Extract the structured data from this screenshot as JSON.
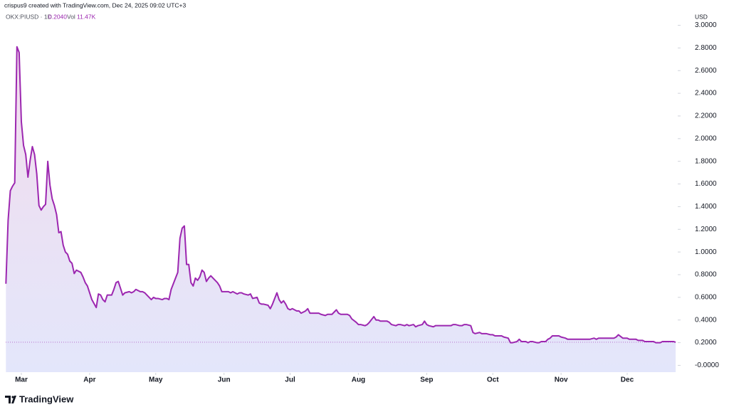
{
  "header": "crispus9 created with TradingView.com, Dec 24, 2025 09:02 UTC+3",
  "brand": "TradingView",
  "chart_data": {
    "type": "area",
    "legend": {
      "symbol": "OKX:PIUSD · 1D",
      "last": "0.2040",
      "volume_label": "Vol",
      "volume": "11.47K"
    },
    "y_unit": "USD",
    "xlim": [
      52.9,
      357.3
    ],
    "ylim": [
      -0.06,
      3.11
    ],
    "xticks": [
      {
        "value": 60,
        "label": "Mar"
      },
      {
        "value": 91,
        "label": "Apr"
      },
      {
        "value": 121,
        "label": "May"
      },
      {
        "value": 152,
        "label": "Jun"
      },
      {
        "value": 182,
        "label": "Jul"
      },
      {
        "value": 213,
        "label": "Aug"
      },
      {
        "value": 244,
        "label": "Sep"
      },
      {
        "value": 274,
        "label": "Oct"
      },
      {
        "value": 305,
        "label": "Nov"
      },
      {
        "value": 335,
        "label": "Dec"
      }
    ],
    "yticks": [
      {
        "value": 0,
        "label": "-0.0000"
      },
      {
        "value": 0.2,
        "label": "0.2000"
      },
      {
        "value": 0.4,
        "label": "0.4000"
      },
      {
        "value": 0.6,
        "label": "0.6000"
      },
      {
        "value": 0.8,
        "label": "0.8000"
      },
      {
        "value": 1,
        "label": "1.0000"
      },
      {
        "value": 1.2,
        "label": "1.2000"
      },
      {
        "value": 1.4,
        "label": "1.4000"
      },
      {
        "value": 1.6,
        "label": "1.6000"
      },
      {
        "value": 1.8,
        "label": "1.8000"
      },
      {
        "value": 2,
        "label": "2.0000"
      },
      {
        "value": 2.2,
        "label": "2.2000"
      },
      {
        "value": 2.4,
        "label": "2.4000"
      },
      {
        "value": 2.6,
        "label": "2.6000"
      },
      {
        "value": 2.8,
        "label": "2.8000"
      },
      {
        "value": 3,
        "label": "3.0000"
      }
    ],
    "grid": false,
    "series": [
      {
        "color": "#9c27b0",
        "x": [
          53,
          54,
          55,
          56,
          57,
          58,
          59,
          60,
          61,
          62,
          63,
          64,
          65,
          66,
          67,
          68,
          69,
          70,
          71,
          72,
          73,
          74,
          75,
          76,
          77,
          78,
          79,
          80,
          81,
          82,
          83,
          84,
          85,
          87,
          88,
          89,
          90,
          91,
          92,
          94,
          95,
          96,
          97,
          98,
          99,
          101,
          102,
          103,
          104,
          105,
          106,
          107,
          109,
          110,
          111,
          112,
          114,
          115,
          116,
          117,
          119,
          120,
          121,
          122,
          124,
          125,
          126,
          127,
          128,
          130,
          131,
          132,
          133,
          134,
          135,
          136,
          137,
          138,
          139,
          140,
          141,
          142,
          143,
          144,
          145,
          146,
          147,
          149,
          150,
          151,
          152,
          154,
          155,
          156,
          158,
          159,
          160,
          161,
          163,
          164,
          165,
          167,
          168,
          169,
          170,
          172,
          173,
          174,
          176,
          177,
          178,
          179,
          180,
          181,
          182,
          183,
          185,
          186,
          187,
          189,
          190,
          191,
          192,
          194,
          195,
          196,
          198,
          199,
          200,
          201,
          203,
          204,
          205,
          207,
          208,
          209,
          210,
          212,
          213,
          214,
          216,
          217,
          218,
          220,
          221,
          222,
          223,
          225,
          226,
          227,
          228,
          230,
          231,
          232,
          234,
          235,
          236,
          238,
          239,
          240,
          242,
          243,
          244,
          245,
          247,
          248,
          249,
          251,
          252,
          253,
          255,
          256,
          257,
          259,
          260,
          261,
          262,
          264,
          265,
          266,
          268,
          269,
          270,
          271,
          273,
          274,
          275,
          277,
          278,
          279,
          281,
          282,
          283,
          285,
          286,
          287,
          289,
          290,
          291,
          292,
          294,
          295,
          296,
          298,
          299,
          300,
          301,
          303,
          304,
          305,
          307,
          308,
          309,
          311,
          312,
          313,
          314,
          316,
          317,
          318,
          320,
          321,
          322,
          324,
          325,
          326,
          327,
          329,
          330,
          331,
          333,
          334,
          335,
          336,
          338,
          339,
          340,
          342,
          343,
          344,
          346,
          347,
          348,
          350,
          351,
          352,
          353,
          355,
          356,
          357
        ],
        "values": [
          0.72,
          1.28,
          1.54,
          1.58,
          1.61,
          2.81,
          2.76,
          2.15,
          1.94,
          1.86,
          1.66,
          1.81,
          1.93,
          1.86,
          1.69,
          1.41,
          1.37,
          1.4,
          1.42,
          1.8,
          1.59,
          1.47,
          1.41,
          1.33,
          1.17,
          1.18,
          1.06,
          1.0,
          0.98,
          0.92,
          0.9,
          0.81,
          0.84,
          0.82,
          0.78,
          0.73,
          0.7,
          0.64,
          0.58,
          0.51,
          0.63,
          0.62,
          0.58,
          0.56,
          0.62,
          0.62,
          0.67,
          0.73,
          0.74,
          0.68,
          0.62,
          0.64,
          0.65,
          0.64,
          0.65,
          0.67,
          0.65,
          0.65,
          0.64,
          0.62,
          0.58,
          0.6,
          0.59,
          0.59,
          0.58,
          0.59,
          0.59,
          0.58,
          0.67,
          0.77,
          0.82,
          1.12,
          1.21,
          1.23,
          0.89,
          0.89,
          0.73,
          0.7,
          0.77,
          0.75,
          0.78,
          0.84,
          0.82,
          0.74,
          0.77,
          0.79,
          0.77,
          0.73,
          0.7,
          0.65,
          0.65,
          0.65,
          0.64,
          0.65,
          0.63,
          0.64,
          0.64,
          0.63,
          0.62,
          0.63,
          0.59,
          0.6,
          0.55,
          0.54,
          0.54,
          0.53,
          0.5,
          0.54,
          0.64,
          0.58,
          0.55,
          0.57,
          0.54,
          0.5,
          0.49,
          0.5,
          0.48,
          0.48,
          0.46,
          0.48,
          0.5,
          0.46,
          0.46,
          0.46,
          0.46,
          0.45,
          0.44,
          0.45,
          0.45,
          0.45,
          0.49,
          0.46,
          0.45,
          0.45,
          0.45,
          0.44,
          0.41,
          0.38,
          0.36,
          0.36,
          0.35,
          0.36,
          0.38,
          0.43,
          0.4,
          0.4,
          0.39,
          0.39,
          0.39,
          0.38,
          0.36,
          0.35,
          0.36,
          0.36,
          0.35,
          0.36,
          0.35,
          0.36,
          0.34,
          0.35,
          0.36,
          0.39,
          0.36,
          0.35,
          0.34,
          0.35,
          0.35,
          0.35,
          0.35,
          0.35,
          0.35,
          0.36,
          0.36,
          0.35,
          0.35,
          0.36,
          0.36,
          0.35,
          0.29,
          0.28,
          0.29,
          0.28,
          0.28,
          0.28,
          0.27,
          0.27,
          0.26,
          0.26,
          0.26,
          0.25,
          0.24,
          0.2,
          0.2,
          0.21,
          0.23,
          0.21,
          0.21,
          0.2,
          0.21,
          0.21,
          0.2,
          0.2,
          0.21,
          0.21,
          0.23,
          0.24,
          0.26,
          0.26,
          0.26,
          0.25,
          0.24,
          0.23,
          0.23,
          0.23,
          0.23,
          0.23,
          0.23,
          0.23,
          0.23,
          0.23,
          0.24,
          0.23,
          0.24,
          0.24,
          0.24,
          0.24,
          0.24,
          0.24,
          0.25,
          0.27,
          0.24,
          0.24,
          0.24,
          0.23,
          0.23,
          0.23,
          0.22,
          0.22,
          0.21,
          0.21,
          0.21,
          0.21,
          0.2,
          0.2,
          0.21,
          0.21,
          0.21,
          0.21,
          0.21,
          0.204
        ]
      }
    ]
  }
}
